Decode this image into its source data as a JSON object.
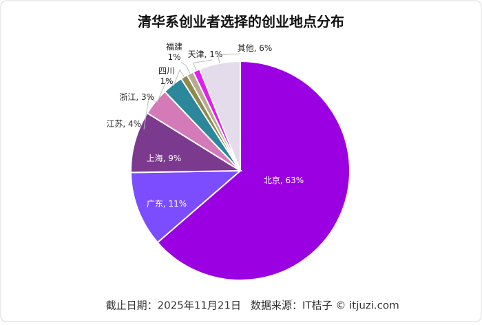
{
  "chart_data": {
    "type": "pie",
    "title": "清华系创业者选择的创业地点分布",
    "values": [
      63,
      11,
      9,
      4,
      3,
      1,
      1,
      1,
      6
    ],
    "value_labels": [
      "北京, 63%",
      "广东, 11%",
      "上海, 9%",
      "江苏, 4%",
      "浙江, 3%",
      "四川\n1%",
      "福建\n1%",
      "天津, 1%",
      "其他, 6%"
    ],
    "colors": [
      "#9b00e3",
      "#7c4dff",
      "#7b3a8e",
      "#d47ab8",
      "#2b8799",
      "#8e8a4d",
      "#b8aa8c",
      "#e01ef0",
      "#e4dcea"
    ],
    "footer": [
      "截止日期：2025年11月21日",
      "数据来源：IT桔子 © itjuzi.com"
    ]
  }
}
